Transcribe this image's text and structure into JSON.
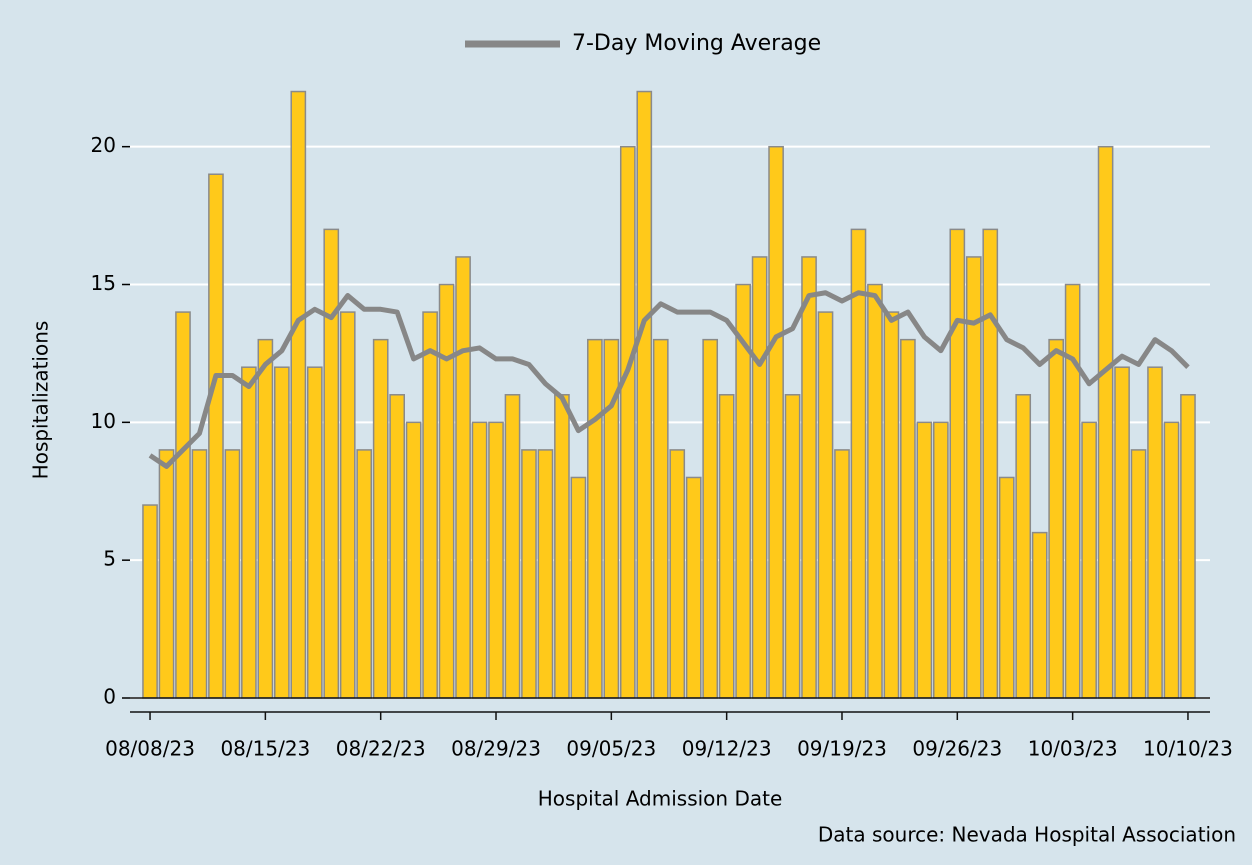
{
  "chart_data": {
    "type": "bar",
    "y_label": "Hospitalizations",
    "x_label": "Hospital Admission Date",
    "source": "Data source: Nevada Hospital Association",
    "categories": [
      "08/08/23",
      null,
      null,
      null,
      null,
      null,
      null,
      "08/15/23",
      null,
      null,
      null,
      null,
      null,
      null,
      "08/22/23",
      null,
      null,
      null,
      null,
      null,
      null,
      "08/29/23",
      null,
      null,
      null,
      null,
      null,
      null,
      "09/05/23",
      null,
      null,
      null,
      null,
      null,
      null,
      "09/12/23",
      null,
      null,
      null,
      null,
      null,
      null,
      "09/19/23",
      null,
      null,
      null,
      null,
      null,
      null,
      "09/26/23",
      null,
      null,
      null,
      null,
      null,
      null,
      "10/03/23",
      null,
      null,
      null,
      null,
      null,
      null,
      "10/10/23"
    ],
    "series": [
      {
        "type": "bar",
        "color": "#ffc91a",
        "values": [
          7,
          9,
          14,
          9,
          19,
          9,
          12,
          13,
          12,
          22,
          12,
          17,
          14,
          9,
          13,
          11,
          10,
          14,
          15,
          16,
          10,
          10,
          11,
          9,
          9,
          11,
          8,
          13,
          13,
          20,
          22,
          13,
          9,
          8,
          13,
          11,
          15,
          16,
          20,
          11,
          16,
          14,
          9,
          17,
          15,
          14,
          13,
          10,
          10,
          17,
          16,
          17,
          8,
          11,
          6,
          13,
          15,
          10,
          20,
          12,
          9,
          12,
          10,
          11
        ]
      },
      {
        "type": "line",
        "name": "7-Day Moving Average",
        "color": "#878787",
        "values": [
          8.8,
          8.4,
          9.0,
          9.6,
          11.7,
          11.7,
          11.3,
          12.1,
          12.6,
          13.7,
          14.1,
          13.8,
          14.6,
          14.1,
          14.1,
          14.0,
          12.3,
          12.6,
          12.3,
          12.6,
          12.7,
          12.3,
          12.3,
          12.1,
          11.4,
          10.9,
          9.7,
          10.1,
          10.6,
          11.9,
          13.7,
          14.3,
          14.0,
          14.0,
          14.0,
          13.7,
          12.9,
          12.1,
          13.1,
          13.4,
          14.6,
          14.7,
          14.4,
          14.7,
          14.6,
          13.7,
          14.0,
          13.1,
          12.6,
          13.7,
          13.6,
          13.9,
          13.0,
          12.7,
          12.1,
          12.6,
          12.3,
          11.4,
          11.9,
          12.4,
          12.1,
          13.0,
          12.6,
          12.0
        ]
      }
    ],
    "ylim": [
      0,
      22.6
    ],
    "yticks": [
      0,
      5,
      10,
      15,
      20
    ],
    "grid": true,
    "legend": "top"
  }
}
